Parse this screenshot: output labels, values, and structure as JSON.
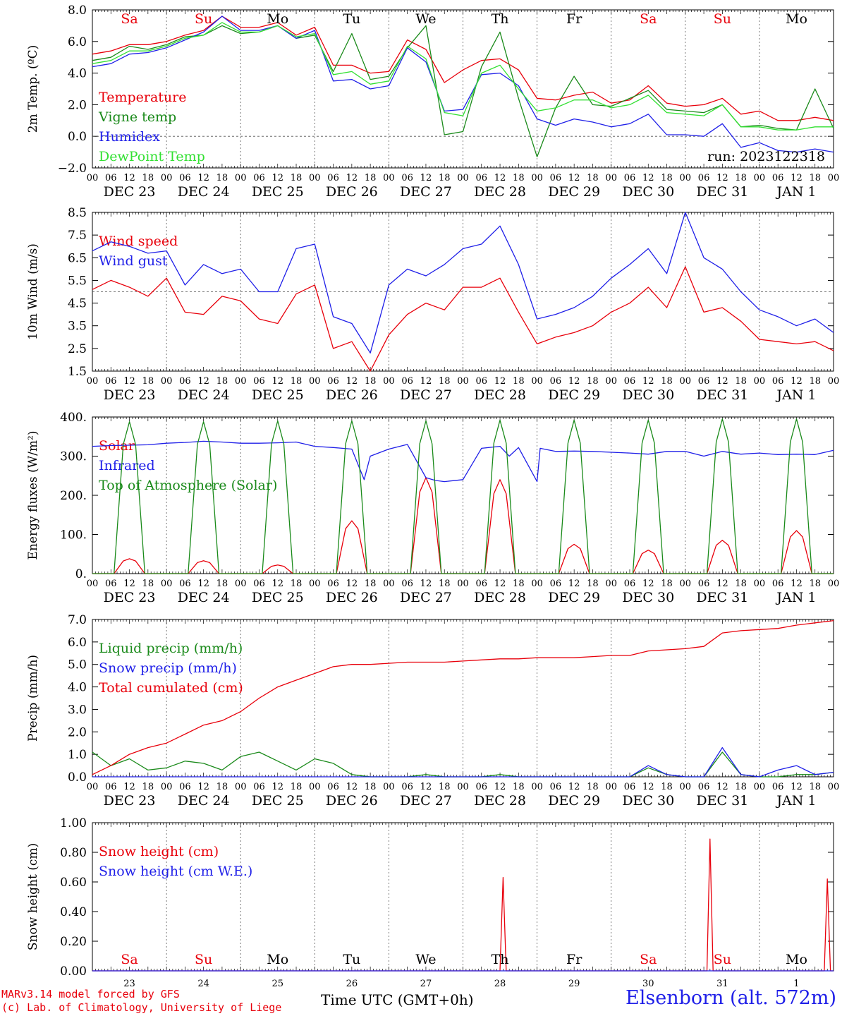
{
  "colors": {
    "red": "#e8000b",
    "dark_green": "#1a8a1a",
    "blue": "#1f1fe8",
    "light_green": "#33e033",
    "black": "#000000"
  },
  "days_top": [
    "Sa",
    "Su",
    "Mo",
    "Tu",
    "We",
    "Th",
    "Fr",
    "Sa",
    "Su",
    "Mo"
  ],
  "days_top_colors": [
    "red",
    "red",
    "black",
    "black",
    "black",
    "black",
    "black",
    "red",
    "red",
    "black"
  ],
  "hour_labels": [
    "00",
    "06",
    "12",
    "18",
    "00",
    "06",
    "12",
    "18",
    "00",
    "06",
    "12",
    "18",
    "00",
    "06",
    "12",
    "18",
    "00",
    "06",
    "12",
    "18",
    "00",
    "06",
    "12",
    "18",
    "00",
    "06",
    "12",
    "18",
    "00",
    "06",
    "12",
    "18",
    "00",
    "06",
    "12",
    "18",
    "00",
    "06",
    "12",
    "18",
    "00"
  ],
  "date_labels": [
    "DEC 23",
    "DEC 24",
    "DEC 25",
    "DEC 26",
    "DEC 27",
    "DEC 28",
    "DEC 29",
    "DEC 30",
    "DEC 31",
    "JAN  1"
  ],
  "bottom_day_numbers": [
    "23",
    "24",
    "25",
    "26",
    "27",
    "28",
    "29",
    "30",
    "31",
    "1"
  ],
  "run_label": "run: 2023122318",
  "footer": {
    "credit_line1": "MARv3.14 model forced by GFS",
    "credit_line2": "(c) Lab. of Climatology, University of Liege",
    "xlabel": "Time UTC (GMT+0h)",
    "station": "Elsenborn (alt. 572m)"
  },
  "chart_data": [
    {
      "type": "line",
      "ylabel": "2m Temp. (ºC)",
      "ylim": [
        -2,
        8
      ],
      "yticks": [
        "8.0",
        "6.0",
        "4.0",
        "2.0",
        "0.0",
        "−2.0"
      ],
      "ytick_values": [
        8,
        6,
        4,
        2,
        0,
        -2
      ],
      "x_unit": "hours after DEC 23 00 UTC",
      "x_hours": [
        0,
        6,
        12,
        18,
        24,
        30,
        36,
        42,
        48,
        54,
        60,
        66,
        72,
        78,
        84,
        90,
        96,
        102,
        108,
        114,
        120,
        126,
        132,
        138,
        144,
        150,
        156,
        162,
        168,
        174,
        180,
        186,
        192,
        198,
        204,
        210,
        216,
        222,
        228,
        234,
        240
      ],
      "series": [
        {
          "name": "Temperature",
          "color": "red",
          "values": [
            5.2,
            5.4,
            5.8,
            5.8,
            6.0,
            6.4,
            6.7,
            7.6,
            6.9,
            6.9,
            7.2,
            6.4,
            6.9,
            4.5,
            4.5,
            4.0,
            4.1,
            6.1,
            5.5,
            3.4,
            4.2,
            4.8,
            4.9,
            4.2,
            2.4,
            2.3,
            2.6,
            2.8,
            2.1,
            2.3,
            3.2,
            2.1,
            1.9,
            2.0,
            2.4,
            1.4,
            1.6,
            1.0,
            1.0,
            1.2,
            1.0
          ]
        },
        {
          "name": "Vigne temp",
          "color": "dark_green",
          "values": [
            4.8,
            5.0,
            5.7,
            5.5,
            5.8,
            6.3,
            6.4,
            7.0,
            6.5,
            6.6,
            7.0,
            6.2,
            6.4,
            4.1,
            6.5,
            3.6,
            3.8,
            5.6,
            7.0,
            0.1,
            0.3,
            4.4,
            6.6,
            2.4,
            -1.3,
            1.8,
            3.8,
            2.0,
            1.9,
            2.4,
            2.9,
            1.7,
            1.6,
            1.5,
            2.0,
            0.6,
            0.7,
            0.5,
            0.4,
            3.0,
            0.5
          ]
        },
        {
          "name": "Humidex",
          "color": "blue",
          "values": [
            4.4,
            4.6,
            5.2,
            5.3,
            5.6,
            6.1,
            6.6,
            7.6,
            6.7,
            6.7,
            7.0,
            6.2,
            6.7,
            3.5,
            3.6,
            3.0,
            3.2,
            5.6,
            4.7,
            1.6,
            1.7,
            3.9,
            4.0,
            3.2,
            1.1,
            0.7,
            1.1,
            0.9,
            0.6,
            0.8,
            1.4,
            0.1,
            0.1,
            0.0,
            0.8,
            -0.7,
            -0.4,
            -0.9,
            -1.0,
            -0.8,
            -1.0
          ]
        },
        {
          "name": "DewPoint Temp",
          "color": "light_green",
          "values": [
            4.6,
            4.8,
            5.4,
            5.4,
            5.7,
            6.2,
            6.4,
            7.2,
            6.6,
            6.6,
            7.0,
            6.3,
            6.5,
            3.9,
            4.1,
            3.3,
            3.5,
            5.7,
            4.9,
            1.5,
            1.3,
            4.0,
            4.5,
            3.0,
            1.6,
            1.8,
            2.3,
            2.3,
            1.8,
            2.0,
            2.6,
            1.5,
            1.4,
            1.3,
            2.0,
            0.6,
            0.6,
            0.4,
            0.4,
            0.6,
            0.6
          ]
        }
      ],
      "reference_line": 0
    },
    {
      "type": "line",
      "ylabel": "10m Wind (m/s)",
      "ylim": [
        1.5,
        8.5
      ],
      "yticks": [
        "8.5",
        "7.5",
        "6.5",
        "5.5",
        "4.5",
        "3.5",
        "2.5",
        "1.5"
      ],
      "ytick_values": [
        8.5,
        7.5,
        6.5,
        5.5,
        4.5,
        3.5,
        2.5,
        1.5
      ],
      "x_hours": [
        0,
        6,
        12,
        18,
        24,
        30,
        36,
        42,
        48,
        54,
        60,
        66,
        72,
        78,
        84,
        90,
        96,
        102,
        108,
        114,
        120,
        126,
        132,
        138,
        144,
        150,
        156,
        162,
        168,
        174,
        180,
        186,
        192,
        198,
        204,
        210,
        216,
        222,
        228,
        234,
        240
      ],
      "series": [
        {
          "name": "Wind speed",
          "color": "red",
          "values": [
            5.1,
            5.5,
            5.2,
            4.8,
            5.6,
            4.1,
            4.0,
            4.8,
            4.6,
            3.8,
            3.6,
            4.9,
            5.3,
            2.5,
            2.8,
            1.5,
            3.1,
            4.0,
            4.5,
            4.2,
            5.2,
            5.2,
            5.6,
            4.1,
            2.7,
            3.0,
            3.2,
            3.5,
            4.1,
            4.5,
            5.2,
            4.3,
            6.1,
            4.1,
            4.3,
            3.7,
            2.9,
            2.8,
            2.7,
            2.8,
            2.4
          ]
        },
        {
          "name": "Wind gust",
          "color": "blue",
          "values": [
            6.8,
            7.2,
            7.0,
            6.7,
            6.8,
            5.3,
            6.2,
            5.8,
            6.0,
            5.0,
            5.0,
            6.9,
            7.1,
            3.9,
            3.6,
            2.3,
            5.3,
            6.0,
            5.7,
            6.2,
            6.9,
            7.1,
            7.9,
            6.2,
            3.8,
            4.0,
            4.3,
            4.8,
            5.6,
            6.2,
            6.9,
            5.8,
            8.5,
            6.5,
            6.0,
            5.0,
            4.2,
            3.9,
            3.5,
            3.8,
            3.2
          ]
        }
      ],
      "reference_line": 5
    },
    {
      "type": "line",
      "ylabel": "Energy fluxes (W/m²)",
      "ylim": [
        0,
        400
      ],
      "yticks": [
        "400.",
        "300.",
        "200.",
        "100.",
        "0."
      ],
      "ytick_values": [
        400,
        300,
        200,
        100,
        0
      ],
      "series": [
        {
          "name": "Solar",
          "color": "red",
          "day_peaks": [
            38,
            33,
            22,
            135,
            245,
            240,
            75,
            60,
            85,
            110
          ]
        },
        {
          "name": "Infrared",
          "color": "blue",
          "x_hours": [
            0,
            6,
            12,
            18,
            24,
            30,
            36,
            42,
            48,
            54,
            60,
            66,
            72,
            78,
            84,
            88,
            90,
            96,
            102,
            108,
            111,
            114,
            120,
            126,
            132,
            135,
            138,
            144,
            145,
            150,
            156,
            162,
            168,
            174,
            180,
            186,
            192,
            198,
            204,
            210,
            216,
            222,
            228,
            234,
            240
          ],
          "values": [
            325,
            327,
            328,
            329,
            333,
            335,
            338,
            336,
            333,
            333,
            334,
            336,
            325,
            322,
            318,
            240,
            300,
            318,
            330,
            245,
            238,
            235,
            240,
            320,
            325,
            300,
            322,
            235,
            320,
            312,
            313,
            312,
            310,
            308,
            305,
            312,
            312,
            300,
            312,
            305,
            308,
            304,
            305,
            304,
            315
          ]
        },
        {
          "name": "Top of Atmosphere (Solar)",
          "color": "dark_green",
          "day_peaks": [
            388,
            388,
            390,
            390,
            390,
            392,
            392,
            392,
            395,
            395
          ]
        }
      ]
    },
    {
      "type": "line",
      "ylabel": "Precip (mm/h)",
      "ylim": [
        0,
        7
      ],
      "yticks": [
        "7.0",
        "6.0",
        "5.0",
        "4.0",
        "3.0",
        "2.0",
        "1.0",
        "0.0"
      ],
      "ytick_values": [
        7,
        6,
        5,
        4,
        3,
        2,
        1,
        0
      ],
      "x_hours": [
        0,
        6,
        12,
        18,
        24,
        30,
        36,
        42,
        48,
        54,
        60,
        66,
        72,
        78,
        84,
        90,
        96,
        102,
        108,
        114,
        120,
        126,
        132,
        138,
        144,
        150,
        156,
        162,
        168,
        174,
        180,
        186,
        192,
        198,
        204,
        210,
        216,
        222,
        228,
        234,
        240
      ],
      "series": [
        {
          "name": "Liquid precip (mm/h)",
          "color": "dark_green",
          "values": [
            1.1,
            0.5,
            0.8,
            0.3,
            0.4,
            0.7,
            0.6,
            0.3,
            0.9,
            1.1,
            0.7,
            0.3,
            0.8,
            0.6,
            0.1,
            0.0,
            0.0,
            0.0,
            0.1,
            0.0,
            0.0,
            0.0,
            0.1,
            0.0,
            0.0,
            0.0,
            0.0,
            0.0,
            0.0,
            0.0,
            0.4,
            0.1,
            0.0,
            0.0,
            1.1,
            0.1,
            0.0,
            0.0,
            0.1,
            0.1,
            0.2
          ]
        },
        {
          "name": "Snow precip (mm/h)",
          "color": "blue",
          "values": [
            0,
            0,
            0,
            0,
            0,
            0,
            0,
            0,
            0,
            0,
            0,
            0,
            0,
            0,
            0,
            0,
            0,
            0,
            0,
            0,
            0,
            0,
            0,
            0,
            0,
            0,
            0,
            0,
            0,
            0,
            0.5,
            0.1,
            0,
            0,
            1.3,
            0.1,
            0,
            0.3,
            0.5,
            0.1,
            0.2
          ]
        },
        {
          "name": "Total cumulated (cm)",
          "color": "red",
          "values": [
            0.1,
            0.5,
            1.0,
            1.3,
            1.5,
            1.9,
            2.3,
            2.5,
            2.9,
            3.5,
            4.0,
            4.3,
            4.6,
            4.9,
            5.0,
            5.0,
            5.05,
            5.1,
            5.1,
            5.1,
            5.15,
            5.2,
            5.25,
            5.25,
            5.3,
            5.3,
            5.3,
            5.35,
            5.4,
            5.4,
            5.6,
            5.65,
            5.7,
            5.8,
            6.4,
            6.5,
            6.55,
            6.6,
            6.75,
            6.85,
            6.95
          ]
        }
      ]
    },
    {
      "type": "line",
      "ylabel": "Snow height (cm)",
      "ylim": [
        0,
        1
      ],
      "yticks": [
        "1.00",
        "0.80",
        "0.60",
        "0.40",
        "0.20",
        "0.00"
      ],
      "ytick_values": [
        1,
        0.8,
        0.6,
        0.4,
        0.2,
        0
      ],
      "series": [
        {
          "name": "Snow height (cm)",
          "color": "red",
          "spikes": [
            {
              "x": 133,
              "y": 0.63
            },
            {
              "x": 200,
              "y": 0.89
            },
            {
              "x": 238,
              "y": 0.62
            }
          ]
        },
        {
          "name": "Snow height (cm W.E.)",
          "color": "blue",
          "values": [
            0
          ]
        }
      ]
    }
  ]
}
